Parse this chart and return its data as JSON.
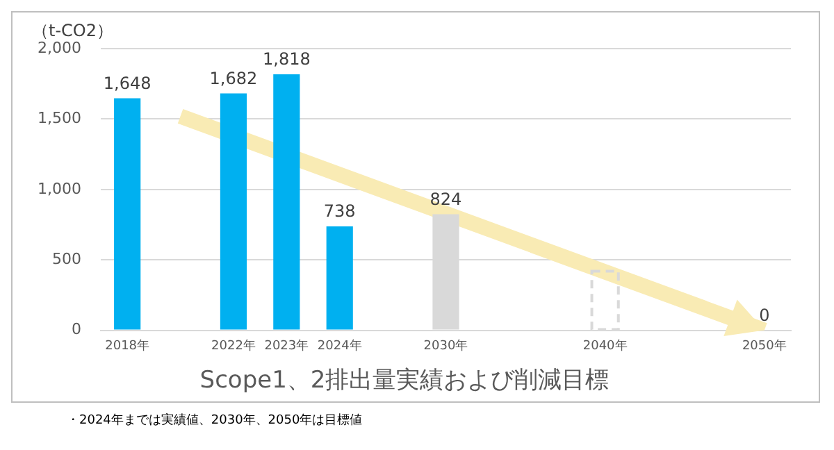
{
  "chart_data": {
    "type": "bar",
    "title": "Scope1、2排出量実績および削減目標",
    "ylabel": "（t-CO2）",
    "annotations": [
      "・2024年までは実績値、2030年、2050年は目標値"
    ],
    "categories": [
      "2018年",
      null,
      "2022年",
      "2023年",
      "2024年",
      null,
      "2030年",
      null,
      null,
      "2040年",
      null,
      null,
      "2050年"
    ],
    "series": [
      {
        "color": "#00b0f0",
        "values": [
          1648,
          null,
          1682,
          1818,
          738,
          null,
          null,
          null,
          null,
          null,
          null,
          null,
          null
        ],
        "value_labels": [
          "1,648",
          null,
          "1,682",
          "1,818",
          "738",
          null,
          null,
          null,
          null,
          null,
          null,
          null,
          null
        ]
      },
      {
        "color": "#d9d9d9",
        "values": [
          null,
          null,
          null,
          null,
          null,
          null,
          824,
          null,
          null,
          null,
          null,
          null,
          0
        ],
        "value_labels": [
          null,
          null,
          null,
          null,
          null,
          null,
          "824",
          null,
          null,
          null,
          null,
          null,
          "0"
        ]
      },
      {
        "color": "#d9d9d9",
        "line_style": "dashed",
        "values": [
          null,
          null,
          null,
          null,
          null,
          null,
          null,
          null,
          null,
          420,
          null,
          null,
          null
        ]
      },
      {
        "type": "line",
        "color": "#f9ebb4",
        "values": [
          null,
          1520,
          null,
          null,
          null,
          null,
          null,
          null,
          null,
          null,
          null,
          null,
          0
        ]
      }
    ],
    "ylim": [
      0,
      2000
    ],
    "yticks": [
      {
        "value": 0,
        "label": "0"
      },
      {
        "value": 500,
        "label": "500"
      },
      {
        "value": 1000,
        "label": "1,000"
      },
      {
        "value": 1500,
        "label": "1,500"
      },
      {
        "value": 2000,
        "label": "2,000"
      }
    ],
    "grid": "y",
    "legend": false
  }
}
